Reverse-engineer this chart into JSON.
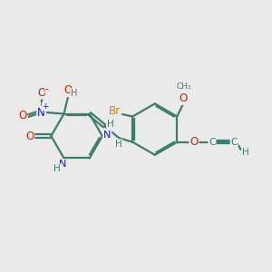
{
  "bg_color": "#eaeaea",
  "bond_color": "#3d7d6e",
  "bond_width": 1.6,
  "dbo": 0.06,
  "atom_colors": {
    "C": "#3d7d6e",
    "N": "#1a1acc",
    "O": "#cc2200",
    "Br": "#cc8800",
    "H": "#3d7d6e"
  },
  "figsize": [
    3.0,
    3.0
  ],
  "dpi": 100
}
